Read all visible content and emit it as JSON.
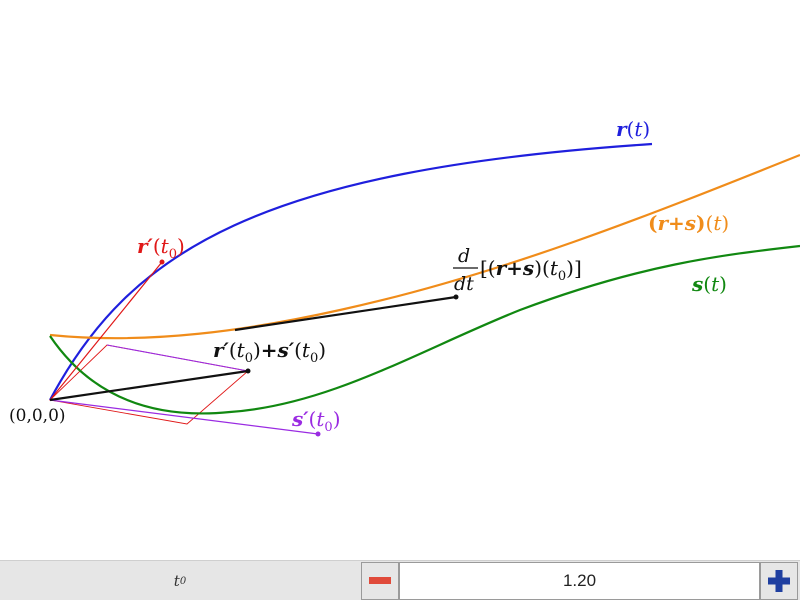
{
  "labels": {
    "r_name": "r",
    "s_name": "s",
    "t": "t",
    "t0": "t",
    "sub0": "0",
    "prime": "′",
    "plus": "+",
    "lparen": "(",
    "rparen": ")",
    "lbracket": "[(",
    "rbracket": ")]",
    "d": "d",
    "dt": "dt",
    "origin": "(0,0,0)"
  },
  "colors": {
    "r": "#1f1fdd",
    "s": "#118811",
    "sum": "#f08c1a",
    "r_prime": "#e01818",
    "s_prime": "#9a2be2",
    "black": "#111111"
  },
  "control": {
    "param_name": "t",
    "param_sub": "0",
    "value": "1.20",
    "minus_icon": "minus-icon",
    "plus_icon": "plus-icon"
  }
}
